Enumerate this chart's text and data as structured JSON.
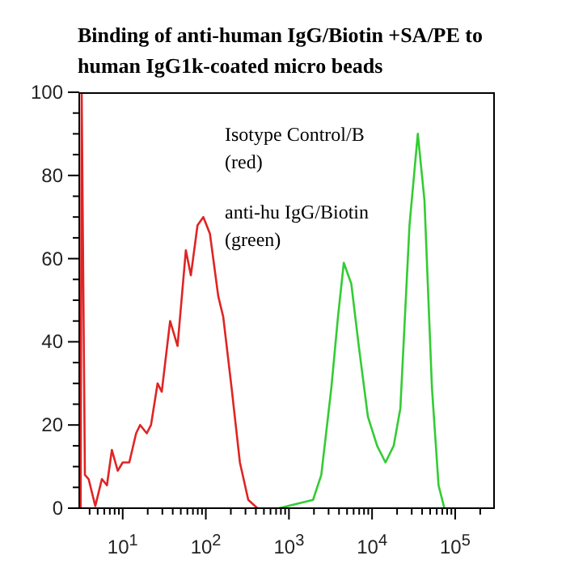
{
  "chart_data": {
    "type": "line",
    "title": "Binding of anti-human IgG/Biotin +SA/PE to human IgG1k-coated micro beads",
    "annotations": [
      "Isotype Control/B\n(red)",
      "anti-hu IgG/Biotin\n(green)"
    ],
    "series": [
      {
        "color": "#e02424",
        "x": [
          3.12,
          3.21,
          3.51,
          3.89,
          4.68,
          5.62,
          6.46,
          7.41,
          8.71,
          10,
          12.0,
          14.5,
          16.2,
          19.5,
          21.9,
          26.3,
          29.5,
          37.2,
          45.7,
          57.5,
          66.1,
          79.4,
          93.3,
          112,
          141,
          162,
          204,
          257,
          324,
          417
        ],
        "values": [
          0,
          100,
          8,
          7,
          0.5,
          7,
          5.5,
          14,
          9,
          11,
          11,
          18,
          20,
          18,
          20,
          30,
          28,
          45,
          39,
          62,
          56,
          68,
          70,
          66,
          51,
          46,
          29,
          11,
          2,
          0
        ]
      },
      {
        "color": "#33cc33",
        "x": [
          759,
          1950,
          2450,
          3240,
          3890,
          4570,
          5620,
          6920,
          8910,
          11500,
          14500,
          18200,
          21900,
          28200,
          35500,
          42700,
          52500,
          63100,
          74100
        ],
        "values": [
          0,
          2,
          8,
          29,
          46,
          59,
          54,
          39,
          22,
          15,
          11,
          15,
          24,
          68,
          90,
          74,
          29,
          5.5,
          0
        ]
      }
    ],
    "xlim": [
      3,
      300000
    ],
    "xticks": [
      {
        "value": 4,
        "label": null
      },
      {
        "value": 5,
        "label": null
      },
      {
        "value": 6,
        "label": null
      },
      {
        "value": 7,
        "label": null
      },
      {
        "value": 8,
        "label": null
      },
      {
        "value": 9,
        "label": null
      },
      {
        "value": 10,
        "label": "10$^{1}$"
      },
      {
        "value": 20,
        "label": null
      },
      {
        "value": 30,
        "label": null
      },
      {
        "value": 40,
        "label": null
      },
      {
        "value": 50,
        "label": null
      },
      {
        "value": 60,
        "label": null
      },
      {
        "value": 70,
        "label": null
      },
      {
        "value": 80,
        "label": null
      },
      {
        "value": 90,
        "label": null
      },
      {
        "value": 100,
        "label": "10$^{2}$"
      },
      {
        "value": 200,
        "label": null
      },
      {
        "value": 300,
        "label": null
      },
      {
        "value": 400,
        "label": null
      },
      {
        "value": 500,
        "label": null
      },
      {
        "value": 600,
        "label": null
      },
      {
        "value": 700,
        "label": null
      },
      {
        "value": 800,
        "label": null
      },
      {
        "value": 900,
        "label": null
      },
      {
        "value": 1000,
        "label": "10$^{3}$"
      },
      {
        "value": 2000,
        "label": null
      },
      {
        "value": 3000,
        "label": null
      },
      {
        "value": 4000,
        "label": null
      },
      {
        "value": 5000,
        "label": null
      },
      {
        "value": 6000,
        "label": null
      },
      {
        "value": 7000,
        "label": null
      },
      {
        "value": 8000,
        "label": null
      },
      {
        "value": 9000,
        "label": null
      },
      {
        "value": 10000,
        "label": "10$^{4}$"
      },
      {
        "value": 20000,
        "label": null
      },
      {
        "value": 30000,
        "label": null
      },
      {
        "value": 40000,
        "label": null
      },
      {
        "value": 50000,
        "label": null
      },
      {
        "value": 60000,
        "label": null
      },
      {
        "value": 70000,
        "label": null
      },
      {
        "value": 80000,
        "label": null
      },
      {
        "value": 90000,
        "label": null
      },
      {
        "value": 100000,
        "label": "10$^{5}$"
      },
      {
        "value": 200000,
        "label": null
      }
    ],
    "log": "x",
    "ylim": [
      0,
      100
    ],
    "yticks": [
      0,
      {
        "value": 5,
        "label": null
      },
      {
        "value": 10,
        "label": null
      },
      {
        "value": 15,
        "label": null
      },
      20,
      {
        "value": 25,
        "label": null
      },
      {
        "value": 30,
        "label": null
      },
      {
        "value": 35,
        "label": null
      },
      40,
      {
        "value": 45,
        "label": null
      },
      {
        "value": 50,
        "label": null
      },
      {
        "value": 55,
        "label": null
      },
      60,
      {
        "value": 65,
        "label": null
      },
      {
        "value": 70,
        "label": null
      },
      {
        "value": 75,
        "label": null
      },
      80,
      {
        "value": 85,
        "label": null
      },
      {
        "value": 90,
        "label": null
      },
      {
        "value": 95,
        "label": null
      },
      100
    ]
  }
}
